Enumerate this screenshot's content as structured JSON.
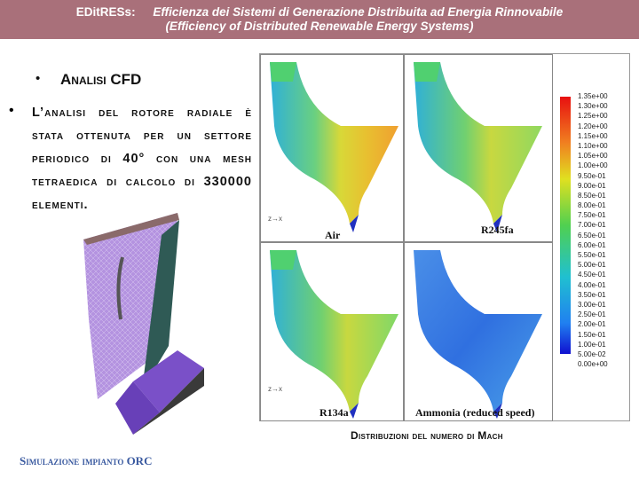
{
  "banner": {
    "tag": "EDitRESs:",
    "line1": "Efficienza dei Sistemi di Generazione Distribuita ad Energia Rinnovabile",
    "line2": "(Efficiency of Distributed Renewable Energy Systems)"
  },
  "bullets": {
    "item1": "Analisi CFD",
    "item2": "L’analisi del rotore radiale è stata ottenuta per un settore periodico di 40° con una mesh tetraedica di calcolo di 330000 elementi."
  },
  "figure": {
    "panels": [
      {
        "label": "Air"
      },
      {
        "label": "R245fa"
      },
      {
        "label": "R134a"
      },
      {
        "label": "Ammonia (reduced speed)"
      }
    ],
    "axis_label": "z→x",
    "legend_ticks": [
      "1.35e+00",
      "1.30e+00",
      "1.25e+00",
      "1.20e+00",
      "1.15e+00",
      "1.10e+00",
      "1.05e+00",
      "1.00e+00",
      "9.50e-01",
      "9.00e-01",
      "8.50e-01",
      "8.00e-01",
      "7.50e-01",
      "7.00e-01",
      "6.50e-01",
      "6.00e-01",
      "5.50e-01",
      "5.00e-01",
      "4.50e-01",
      "4.00e-01",
      "3.50e-01",
      "3.00e-01",
      "2.50e-01",
      "2.00e-01",
      "1.50e-01",
      "1.00e-01",
      "5.00e-02",
      "0.00e+00"
    ]
  },
  "caption": "Distribuzioni del numero di Mach",
  "footer": "Simulazione impianto ORC",
  "colors": {
    "banner": "#a9707a",
    "footer": "#3a5aa0"
  }
}
